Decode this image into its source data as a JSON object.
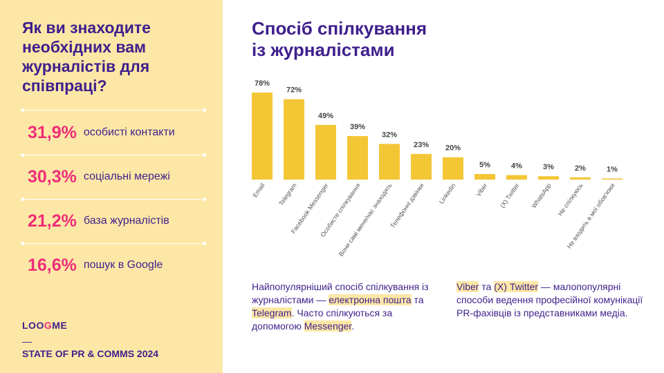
{
  "left_panel": {
    "title": "Як ви знаходите необхідних вам журналістів для співпраці?",
    "stats": [
      {
        "value": "31,9%",
        "label": "особисті контакти"
      },
      {
        "value": "30,3%",
        "label": "соціальні мережі"
      },
      {
        "value": "21,2%",
        "label": "база журналістів"
      },
      {
        "value": "16,6%",
        "label": "пошук в Google"
      }
    ]
  },
  "brand": {
    "logo_a": "LOO",
    "logo_o": "G",
    "logo_b": "ME",
    "dash": "—",
    "footer": "STATE OF PR & COMMS 2024"
  },
  "main": {
    "title_line1": "Спосіб спілкування",
    "title_line2": "із журналістами"
  },
  "chart_data": {
    "type": "bar",
    "title": "Спосіб спілкування із журналістами",
    "categories": [
      "Email",
      "Telegram",
      "Facebook Messenger",
      "Особисте спілкування",
      "Вони самі мене/нас знаходять",
      "Телефонні дзвінки",
      "LinkedIn",
      "Viber",
      "(X) Twitter",
      "WhatsApp",
      "Не спілкуюсь",
      "Не входить в мої обов'язки"
    ],
    "values": [
      78,
      72,
      49,
      39,
      32,
      23,
      20,
      5,
      4,
      3,
      2,
      1
    ],
    "value_labels": [
      "78%",
      "72%",
      "49%",
      "39%",
      "32%",
      "23%",
      "20%",
      "5%",
      "4%",
      "3%",
      "2%",
      "1%"
    ],
    "ylim": [
      0,
      100
    ],
    "grid": false,
    "bar_color": "#f3c636"
  },
  "notes": {
    "left": {
      "p1": "Найпопулярніший спосіб спілкування із журналістами — ",
      "h1": "електронна пошта",
      "p2": " та ",
      "h2": "Telegram",
      "p3": ". Часто спілкуються за допомогою ",
      "h3": "Messenger",
      "p4": "."
    },
    "right": {
      "h1": "Viber",
      "p1": " та ",
      "h2": "(X) Twitter",
      "p2": " — малопопулярні способи ведення професійної комунікації PR-фахівців із представниками медіа."
    }
  },
  "colors": {
    "panel": "#fde7a6",
    "title": "#3e1f8c",
    "accent": "#ef2d78",
    "bar": "#f3c636"
  }
}
